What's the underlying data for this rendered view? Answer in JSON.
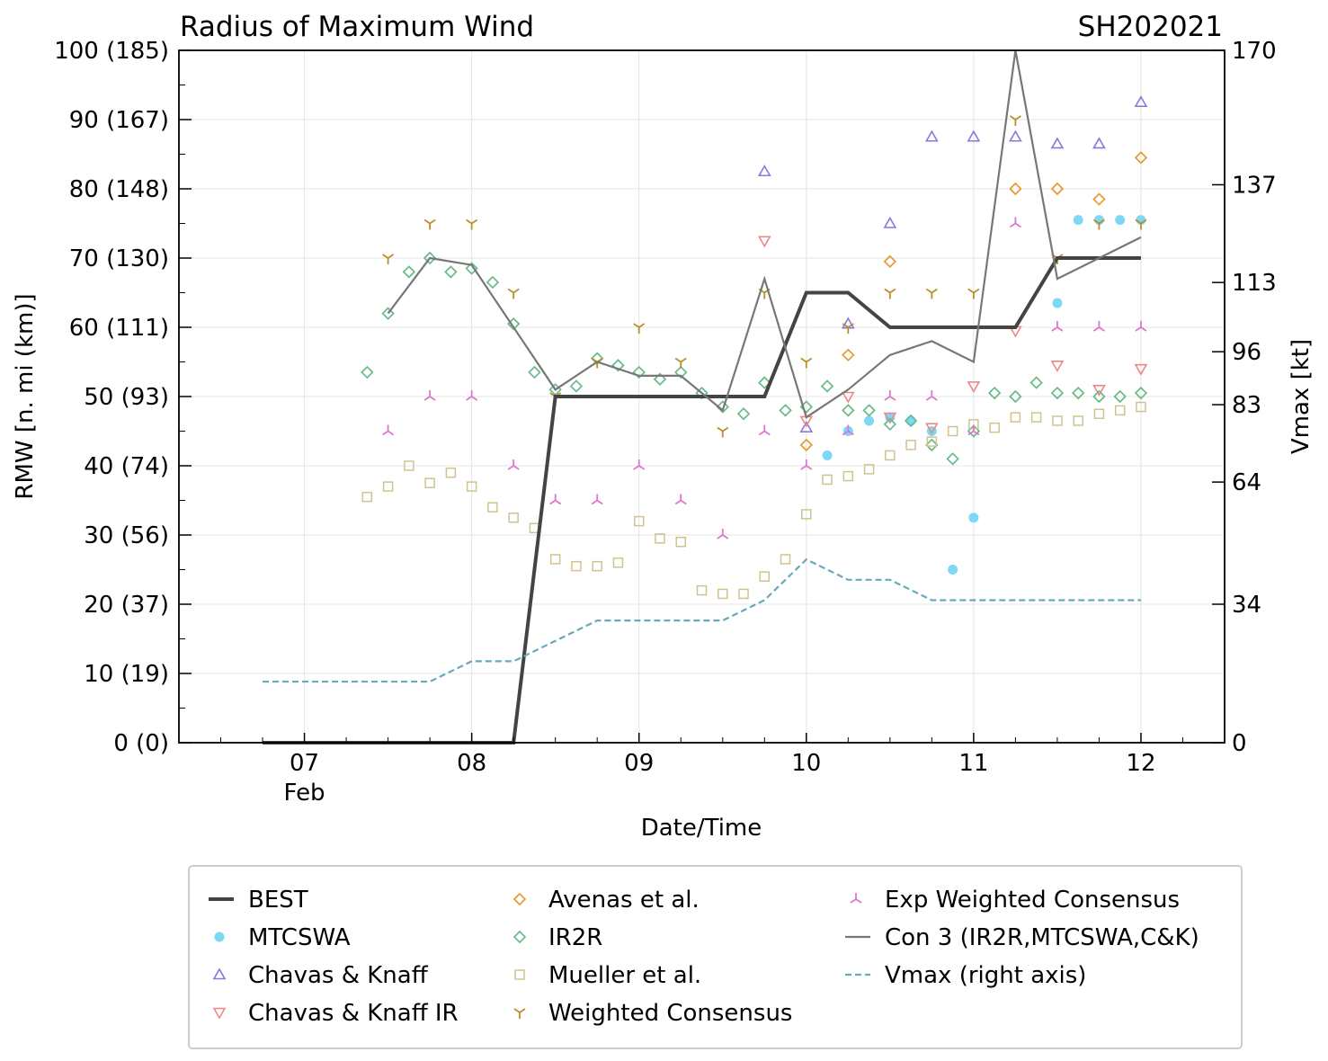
{
  "chart_data": {
    "type": "line",
    "title": "Radius of Maximum Wind",
    "storm_id": "SH202021",
    "xlabel": "Date/Time",
    "ylabel": "RMW [n. mi (km)]",
    "y2label": "Vmax [kt]",
    "xlim": [
      6.25,
      12.5
    ],
    "ylim": [
      0,
      100
    ],
    "y2lim": [
      0,
      170
    ],
    "x_ticks": [
      {
        "value": 7,
        "label": "07"
      },
      {
        "value": 8,
        "label": "08"
      },
      {
        "value": 9,
        "label": "09"
      },
      {
        "value": 10,
        "label": "10"
      },
      {
        "value": 11,
        "label": "11"
      },
      {
        "value": 12,
        "label": "12"
      }
    ],
    "x_sublabel": {
      "value": 7,
      "label": "Feb"
    },
    "y_ticks": [
      {
        "value": 0,
        "label": "0 (0)"
      },
      {
        "value": 10,
        "label": "10 (19)"
      },
      {
        "value": 20,
        "label": "20 (37)"
      },
      {
        "value": 30,
        "label": "30 (56)"
      },
      {
        "value": 40,
        "label": "40 (74)"
      },
      {
        "value": 50,
        "label": "50 (93)"
      },
      {
        "value": 60,
        "label": "60 (111)"
      },
      {
        "value": 70,
        "label": "70 (130)"
      },
      {
        "value": 80,
        "label": "80 (148)"
      },
      {
        "value": 90,
        "label": "90 (167)"
      },
      {
        "value": 100,
        "label": "100 (185)"
      }
    ],
    "y2_ticks": [
      {
        "value": 0,
        "label": "0"
      },
      {
        "value": 34,
        "label": "34"
      },
      {
        "value": 64,
        "label": "64"
      },
      {
        "value": 83,
        "label": "83"
      },
      {
        "value": 96,
        "label": "96"
      },
      {
        "value": 113,
        "label": "113"
      },
      {
        "value": 137,
        "label": "137"
      },
      {
        "value": 170,
        "label": "170"
      }
    ],
    "grid": true,
    "legend_position": "bottom",
    "series": [
      {
        "name": "BEST",
        "kind": "line",
        "color": "#444444",
        "axis": "left",
        "x": [
          6.75,
          7.0,
          7.25,
          7.5,
          7.75,
          8.0,
          8.25,
          8.5,
          8.75,
          9.0,
          9.25,
          9.5,
          9.75,
          10.0,
          10.25,
          10.5,
          10.75,
          11.0,
          11.25,
          11.5,
          11.75,
          12.0
        ],
        "y": [
          0,
          0,
          0,
          0,
          0,
          0,
          0,
          50,
          50,
          50,
          50,
          50,
          50,
          65,
          65,
          60,
          60,
          60,
          60,
          70,
          70,
          70
        ]
      },
      {
        "name": "MTCSWA",
        "kind": "marker",
        "marker": "circle",
        "color": "#7dd8f5",
        "axis": "left",
        "x": [
          10.125,
          10.25,
          10.375,
          10.5,
          10.625,
          10.75,
          10.875,
          11.0,
          11.5,
          11.625,
          11.75,
          11.875,
          12.0
        ],
        "y": [
          41.5,
          45,
          46.5,
          47,
          46.5,
          45,
          25,
          32.5,
          63.5,
          75.5,
          75.5,
          75.5,
          75.5
        ]
      },
      {
        "name": "Chavas & Knaff",
        "kind": "marker",
        "marker": "triangle-up",
        "color": "#8877dd",
        "axis": "left",
        "x": [
          9.75,
          10.0,
          10.25,
          10.5,
          10.75,
          11.0,
          11.25,
          11.5,
          11.75,
          12.0
        ],
        "y": [
          82.5,
          45.5,
          60.5,
          75,
          87.5,
          87.5,
          87.5,
          86.5,
          86.5,
          92.5
        ]
      },
      {
        "name": "Chavas & Knaff IR",
        "kind": "marker",
        "marker": "triangle-down",
        "color": "#ee8888",
        "axis": "left",
        "x": [
          9.75,
          10.0,
          10.25,
          10.5,
          10.75,
          11.0,
          11.25,
          11.5,
          11.75,
          12.0
        ],
        "y": [
          72.5,
          46.5,
          50,
          47,
          45.5,
          51.5,
          59.5,
          54.5,
          51,
          54
        ]
      },
      {
        "name": "Avenas et al.",
        "kind": "marker",
        "marker": "diamond",
        "color": "#e89a30",
        "axis": "left",
        "x": [
          10.0,
          10.25,
          10.5,
          11.25,
          11.5,
          11.75,
          12.0
        ],
        "y": [
          43,
          56,
          69.5,
          80,
          80,
          78.5,
          84.5
        ]
      },
      {
        "name": "IR2R",
        "kind": "marker",
        "marker": "diamond",
        "color": "#66bb88",
        "axis": "left",
        "x": [
          7.375,
          7.5,
          7.625,
          7.75,
          7.875,
          8.0,
          8.125,
          8.25,
          8.375,
          8.5,
          8.625,
          8.75,
          8.875,
          9.0,
          9.125,
          9.25,
          9.375,
          9.5,
          9.625,
          9.75,
          9.875,
          10.0,
          10.125,
          10.25,
          10.375,
          10.5,
          10.625,
          10.75,
          10.875,
          11.0,
          11.125,
          11.25,
          11.375,
          11.5,
          11.625,
          11.75,
          11.875,
          12.0
        ],
        "y": [
          53.5,
          62,
          68,
          70,
          68,
          68.5,
          66.5,
          60.5,
          53.5,
          51,
          51.5,
          55.5,
          54.5,
          53.5,
          52.5,
          53.5,
          50.5,
          48.5,
          47.5,
          52,
          48,
          48.5,
          51.5,
          48,
          48,
          46,
          46.5,
          43,
          41,
          45,
          50.5,
          50,
          52,
          50.5,
          50.5,
          50,
          50,
          50.5
        ]
      },
      {
        "name": "Mueller et al.",
        "kind": "marker",
        "marker": "square",
        "color": "#cfc48e",
        "axis": "left",
        "x": [
          7.375,
          7.5,
          7.625,
          7.75,
          7.875,
          8.0,
          8.125,
          8.25,
          8.375,
          8.5,
          8.625,
          8.75,
          8.875,
          9.0,
          9.125,
          9.25,
          9.375,
          9.5,
          9.625,
          9.75,
          9.875,
          10.0,
          10.125,
          10.25,
          10.375,
          10.5,
          10.625,
          10.75,
          10.875,
          11.0,
          11.125,
          11.25,
          11.375,
          11.5,
          11.625,
          11.75,
          11.875,
          12.0
        ],
        "y": [
          35.5,
          37,
          40,
          37.5,
          39,
          37,
          34,
          32.5,
          31,
          26.5,
          25.5,
          25.5,
          26,
          32,
          29.5,
          29,
          22,
          21.5,
          21.5,
          24,
          26.5,
          33,
          38,
          38.5,
          39.5,
          41.5,
          43,
          43.5,
          45,
          46,
          45.5,
          47,
          47,
          46.5,
          46.5,
          47.5,
          48,
          48.5
        ]
      },
      {
        "name": "Weighted Consensus",
        "kind": "marker",
        "marker": "tri-down",
        "color": "#b8902a",
        "axis": "left",
        "x": [
          7.5,
          7.75,
          8.0,
          8.25,
          8.5,
          8.75,
          9.0,
          9.25,
          9.5,
          9.75,
          10.0,
          10.25,
          10.5,
          10.75,
          11.0,
          11.25,
          11.5,
          11.75,
          12.0
        ],
        "y": [
          70,
          75,
          75,
          65,
          50,
          55,
          60,
          55,
          45,
          65,
          55,
          60,
          65,
          65,
          65,
          90,
          70,
          75,
          75
        ]
      },
      {
        "name": "Exp Weighted Consensus",
        "kind": "marker",
        "marker": "tri-up",
        "color": "#dd77cc",
        "axis": "left",
        "x": [
          7.5,
          7.75,
          8.0,
          8.25,
          8.5,
          8.75,
          9.0,
          9.25,
          9.5,
          9.75,
          10.0,
          10.25,
          10.5,
          10.75,
          11.0,
          11.25,
          11.5,
          11.75,
          12.0
        ],
        "y": [
          45,
          50,
          50,
          40,
          35,
          35,
          40,
          35,
          30,
          45,
          40,
          45,
          50,
          50,
          45,
          75,
          60,
          60,
          60
        ]
      },
      {
        "name": "Con 3 (IR2R,MTCSWA,C&K)",
        "kind": "line",
        "color": "#777777",
        "axis": "left",
        "x": [
          7.5,
          7.75,
          8.0,
          8.25,
          8.5,
          8.75,
          9.0,
          9.25,
          9.5,
          9.75,
          10.0,
          10.25,
          10.5,
          10.75,
          11.0,
          11.25,
          11.5,
          11.75,
          12.0
        ],
        "y": [
          62,
          70,
          69,
          60,
          51,
          55,
          53,
          53,
          48,
          67,
          47,
          51,
          56,
          58,
          55,
          100,
          67,
          70,
          73
        ]
      },
      {
        "name": "Vmax (right axis)",
        "kind": "dashed-line",
        "color": "#66aabb",
        "axis": "right",
        "x": [
          6.75,
          7.0,
          7.25,
          7.5,
          7.75,
          8.0,
          8.25,
          8.5,
          8.75,
          9.0,
          9.25,
          9.5,
          9.75,
          10.0,
          10.25,
          10.5,
          10.75,
          11.0,
          11.25,
          11.5,
          11.75,
          12.0
        ],
        "y": [
          15,
          15,
          15,
          15,
          15,
          20,
          20,
          25,
          30,
          30,
          30,
          30,
          35,
          45,
          40,
          40,
          35,
          35,
          35,
          35,
          35,
          35
        ]
      }
    ]
  }
}
